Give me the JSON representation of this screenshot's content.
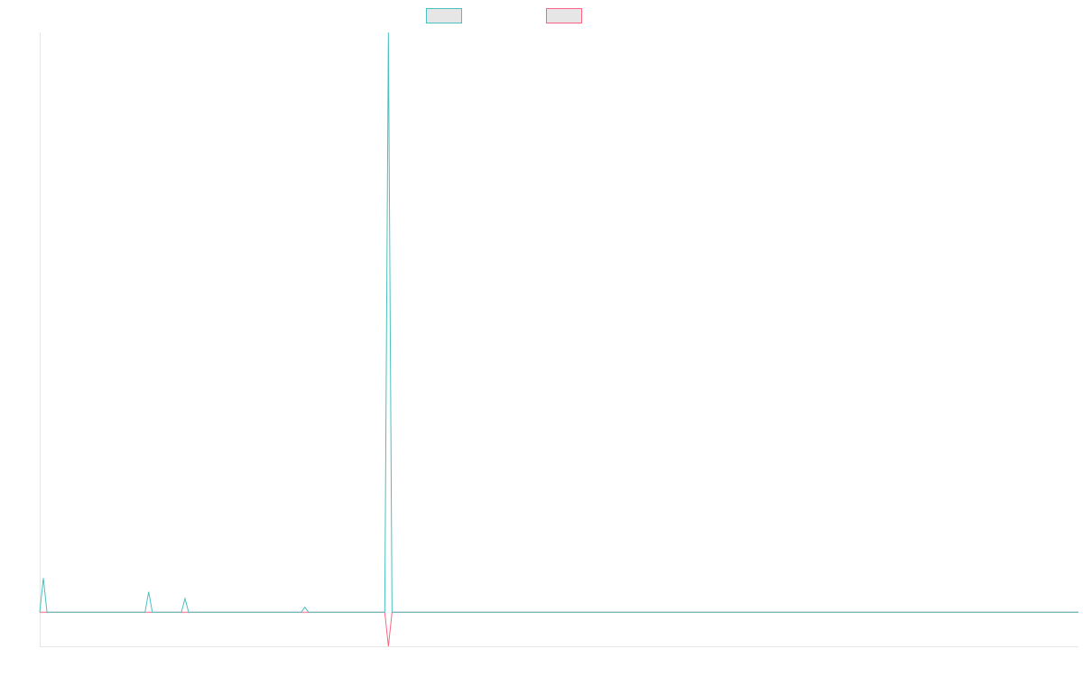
{
  "chart_data": {
    "type": "line",
    "title": "",
    "xlabel": "",
    "ylabel": "",
    "ylim": [
      -1,
      17
    ],
    "grid": false,
    "legend_position": "top-center",
    "x_count": 287,
    "series": [
      {
        "color": "#4bc0c0",
        "fill": "#e6e6e6",
        "points": [
          [
            0,
            0
          ],
          [
            1,
            1
          ],
          [
            2,
            0
          ],
          [
            29,
            0
          ],
          [
            30,
            0.6
          ],
          [
            31,
            0
          ],
          [
            39,
            0
          ],
          [
            40,
            0.4
          ],
          [
            41,
            0
          ],
          [
            72,
            0
          ],
          [
            73,
            0.15
          ],
          [
            74,
            0
          ],
          [
            95,
            0
          ],
          [
            96,
            17
          ],
          [
            97,
            0
          ],
          [
            286,
            0
          ]
        ]
      },
      {
        "color": "#ff6384",
        "fill": "#e6e6e6",
        "points": [
          [
            0,
            0
          ],
          [
            95,
            0
          ],
          [
            96,
            -1
          ],
          [
            97,
            0
          ],
          [
            286,
            0
          ]
        ]
      }
    ]
  }
}
